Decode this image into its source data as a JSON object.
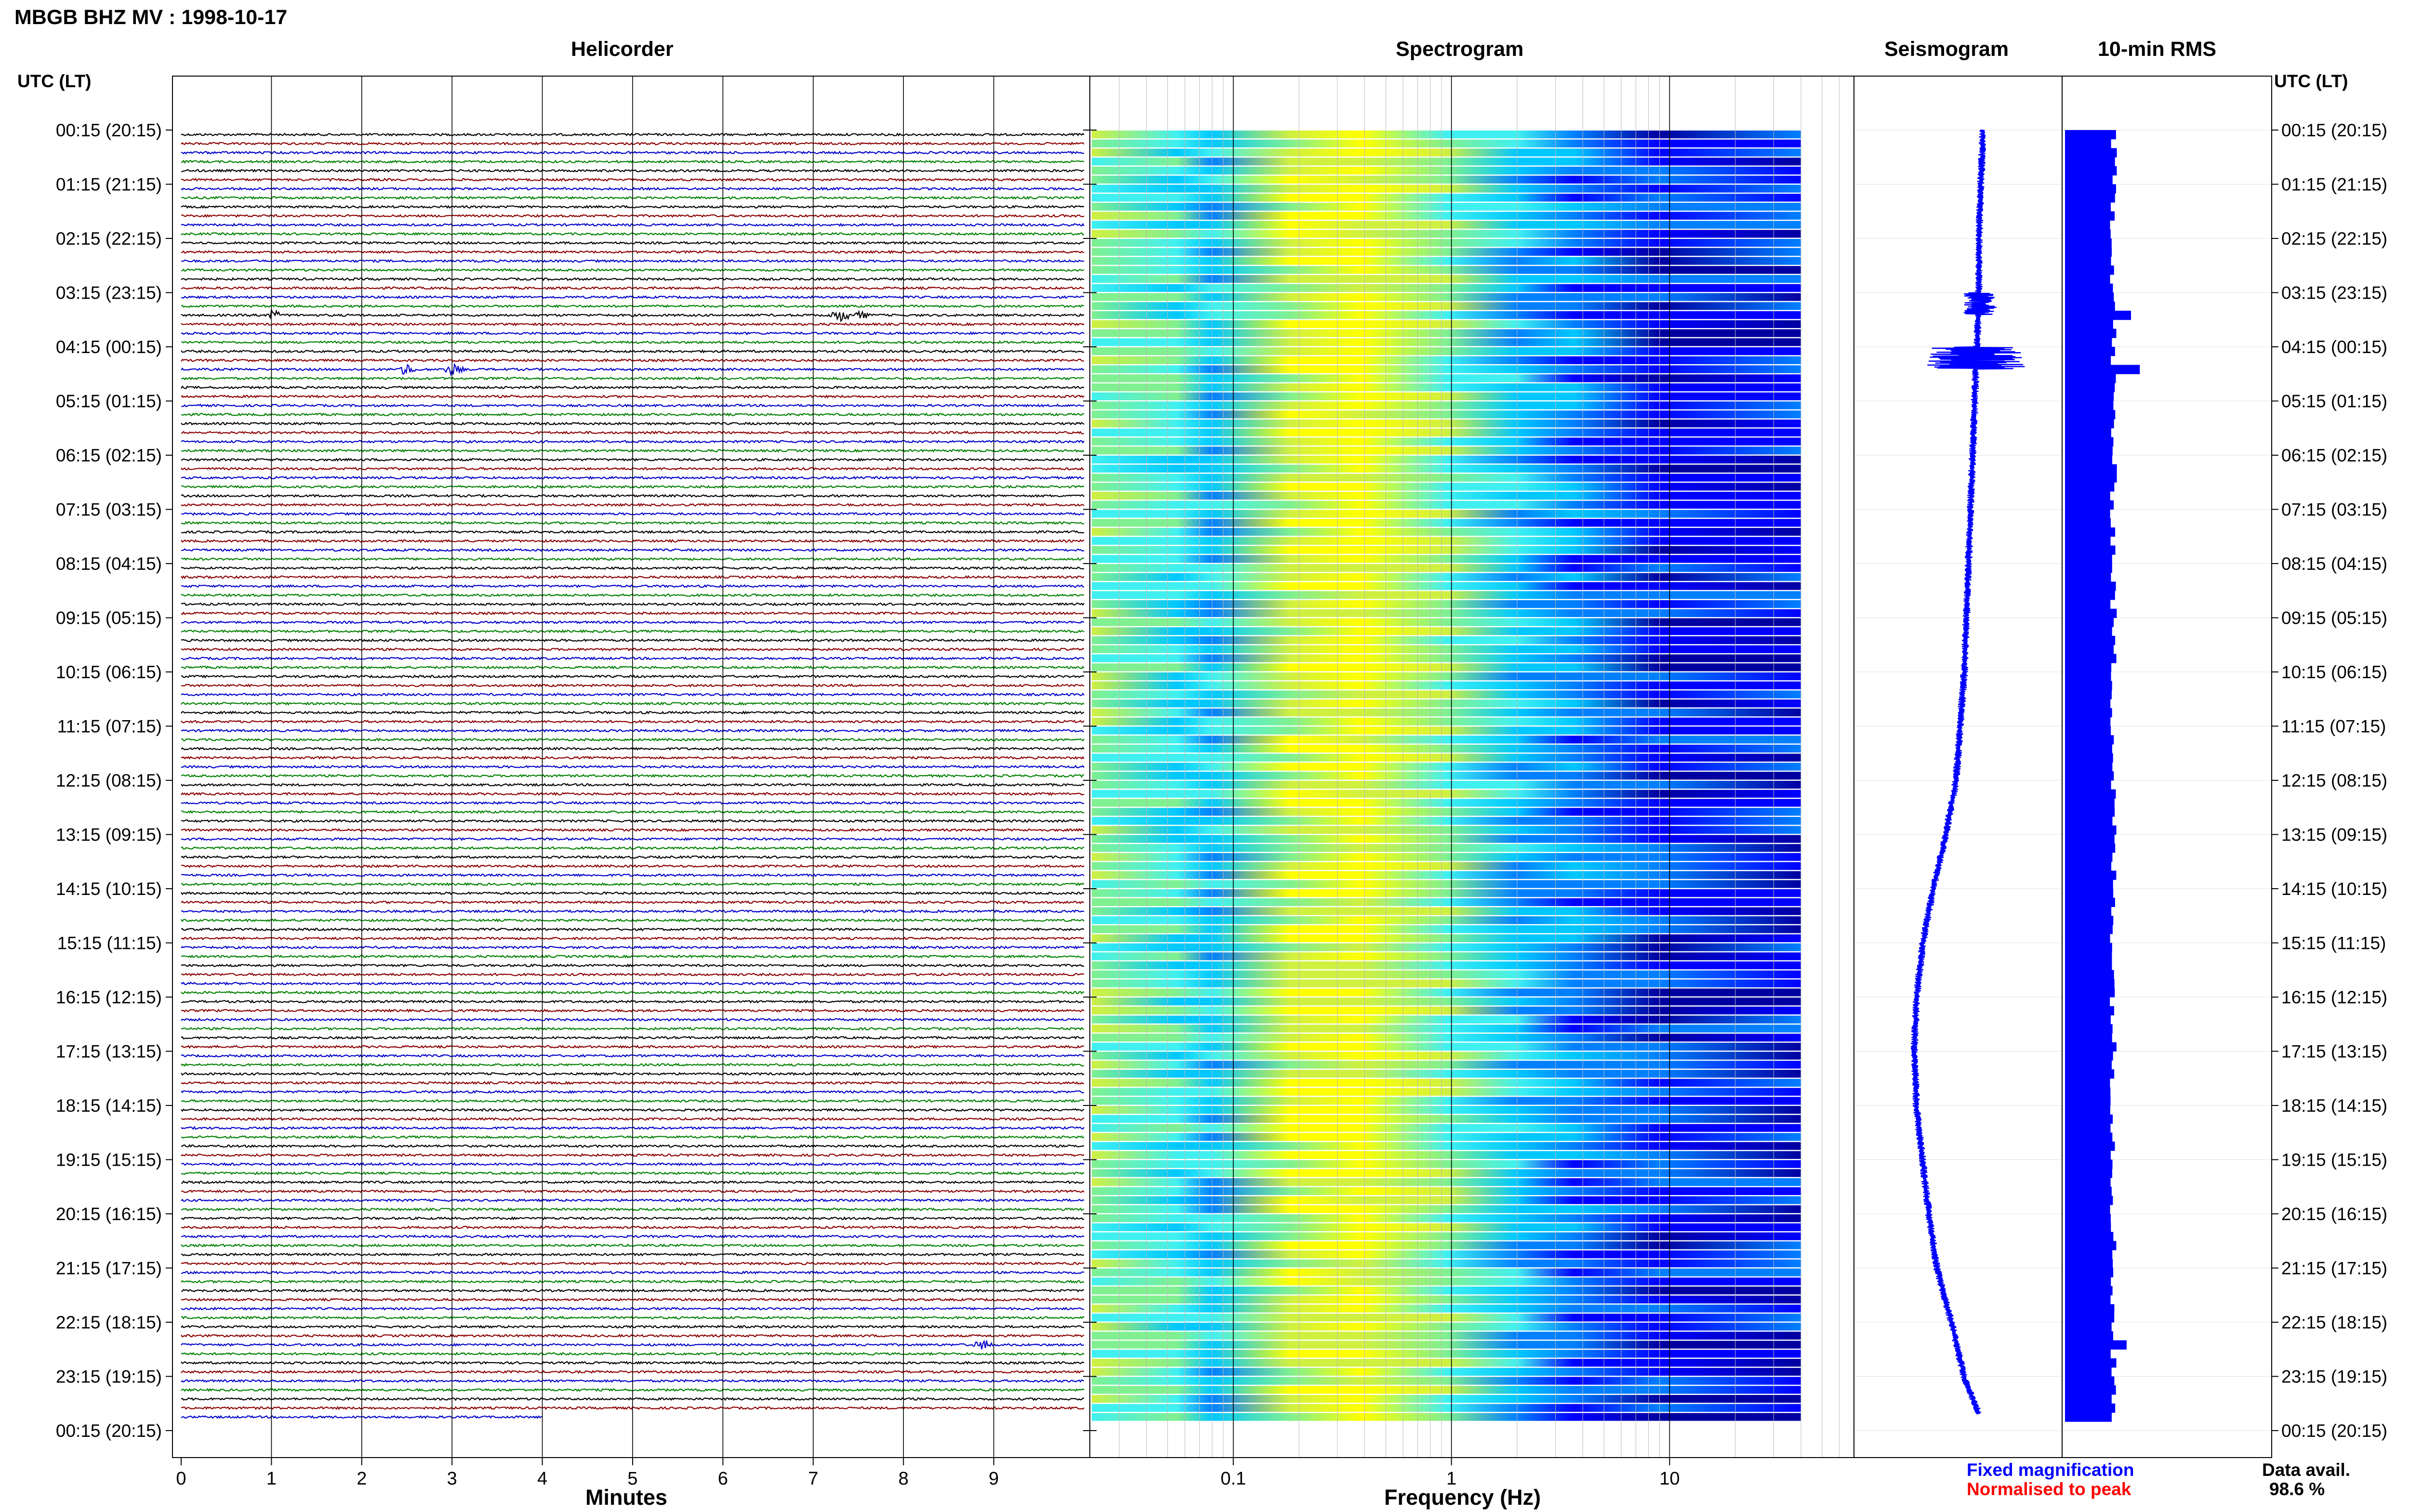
{
  "figure": {
    "title": "MBGB BHZ MV : 1998-10-17",
    "panel_titles": {
      "helicorder": "Helicorder",
      "spectrogram": "Spectrogram",
      "seismogram": "Seismogram",
      "rms": "10-min RMS"
    },
    "left_axis_header": "UTC (LT)",
    "right_axis_header": "UTC (LT)",
    "legend": {
      "fixed": "Fixed magnification",
      "normalised": "Normalised to peak",
      "fixed_color": "#0000ff",
      "normalised_color": "#ff0000"
    },
    "data_availability": {
      "label": "Data avail.",
      "value": "98.6 %"
    }
  },
  "chart_data": [
    {
      "panel": "helicorder",
      "type": "line",
      "xlabel": "Minutes",
      "xlim": [
        0,
        10
      ],
      "x_ticks": [
        "0",
        "1",
        "2",
        "3",
        "4",
        "5",
        "6",
        "7",
        "8",
        "9"
      ],
      "y_tick_labels": [
        "00:15 (20:15)",
        "01:15 (21:15)",
        "02:15 (22:15)",
        "03:15 (23:15)",
        "04:15 (00:15)",
        "05:15 (01:15)",
        "06:15 (02:15)",
        "07:15 (03:15)",
        "08:15 (04:15)",
        "09:15 (05:15)",
        "10:15 (06:15)",
        "11:15 (07:15)",
        "12:15 (08:15)",
        "13:15 (09:15)",
        "14:15 (10:15)",
        "15:15 (11:15)",
        "16:15 (12:15)",
        "17:15 (13:15)",
        "18:15 (14:15)",
        "19:15 (15:15)",
        "20:15 (16:15)",
        "21:15 (17:15)",
        "22:15 (18:15)",
        "23:15 (19:15)",
        "00:15 (20:15)"
      ],
      "trace_colors": [
        "#000000",
        "#8b0000",
        "#0000cc",
        "#008000"
      ],
      "trace_count": 143,
      "last_trace_minutes": 4,
      "events": [
        {
          "hour_index": 3,
          "minute": 1.0
        },
        {
          "hour_index": 3,
          "minute": 7.3
        },
        {
          "hour_index": 3,
          "minute": 7.5
        },
        {
          "hour_index": 4,
          "minute": 2.5
        },
        {
          "hour_index": 4,
          "minute": 3.0
        },
        {
          "hour_index": 22,
          "minute": 8.9
        }
      ]
    },
    {
      "panel": "spectrogram",
      "type": "heatmap",
      "xlabel": "Frequency (Hz)",
      "x_scale": "log",
      "xlim": [
        0.022,
        70
      ],
      "x_ticks": [
        "0.1",
        "1",
        "10"
      ],
      "colormap": [
        "#0000a0",
        "#0000ff",
        "#0080ff",
        "#00c8ff",
        "#40f0f0",
        "#80f090",
        "#d0f040",
        "#ffff00"
      ],
      "row_count": 143,
      "max_frequency_hz": 40
    },
    {
      "panel": "seismogram",
      "type": "line",
      "trend_minutes": [
        0,
        60,
        120,
        180,
        240,
        300,
        360,
        420,
        480,
        540,
        600,
        660,
        720,
        780,
        840,
        900,
        960,
        1020,
        1080,
        1140,
        1200,
        1260,
        1320,
        1380,
        1420
      ],
      "trend_offset": [
        0.62,
        0.61,
        0.6,
        0.6,
        0.59,
        0.58,
        0.57,
        0.56,
        0.55,
        0.54,
        0.53,
        0.51,
        0.49,
        0.44,
        0.38,
        0.33,
        0.3,
        0.29,
        0.3,
        0.33,
        0.36,
        0.4,
        0.47,
        0.53,
        0.6
      ]
    },
    {
      "panel": "rms",
      "type": "bar",
      "color": "#0000ff",
      "bar_count": 143,
      "typical_level": 0.55,
      "peaks": [
        {
          "hour_index": 3,
          "level": 0.75
        },
        {
          "hour_index": 4,
          "level": 0.85
        },
        {
          "hour_index": 22,
          "level": 0.7
        }
      ]
    }
  ]
}
